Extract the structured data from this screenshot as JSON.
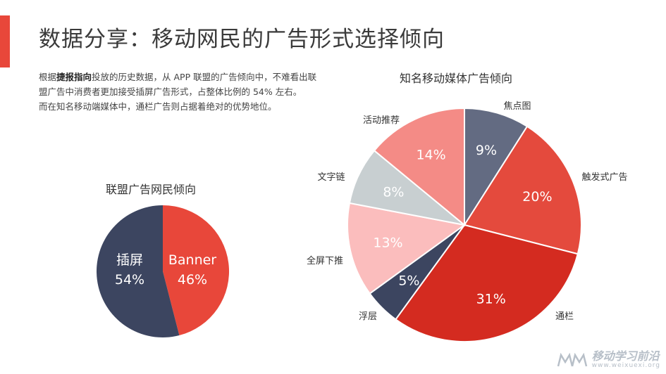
{
  "header": {
    "title": "数据分享：移动网民的广告形式选择倾向"
  },
  "description": {
    "para1_pre": "根据",
    "para1_bold": "捷报指向",
    "para1_post": "投放的历史数据，从 APP 联盟的广告倾向中，不难看出联盟广告中消费者更加接受插屏广告形式，占整体比例的 54% 左右。",
    "para2": "而在知名移动端媒体中，通栏广告则占据着绝对的优势地位。"
  },
  "watermark": {
    "name": "移动学习前沿",
    "url": "www.weixuexi.org"
  },
  "chart_data": [
    {
      "type": "pie",
      "title": "联盟广告网民倾向",
      "slices": [
        {
          "label": "Banner",
          "value": 46,
          "display": "46%",
          "color": "#e8473a"
        },
        {
          "label": "插屏",
          "value": 54,
          "display": "54%",
          "color": "#3c4560"
        }
      ]
    },
    {
      "type": "pie",
      "title": "知名移动媒体广告倾向",
      "slices": [
        {
          "label": "焦点图",
          "value": 9,
          "display": "9%",
          "color": "#636b82"
        },
        {
          "label": "触发式广告",
          "value": 20,
          "display": "20%",
          "color": "#e44a3d"
        },
        {
          "label": "通栏",
          "value": 31,
          "display": "31%",
          "color": "#d42b20"
        },
        {
          "label": "浮层",
          "value": 5,
          "display": "5%",
          "color": "#3c4560"
        },
        {
          "label": "全屏下推",
          "value": 13,
          "display": "13%",
          "color": "#fbbdbd"
        },
        {
          "label": "文字链",
          "value": 8,
          "display": "8%",
          "color": "#c8cfd1"
        },
        {
          "label": "活动推荐",
          "value": 14,
          "display": "14%",
          "color": "#f48b86"
        }
      ]
    }
  ]
}
